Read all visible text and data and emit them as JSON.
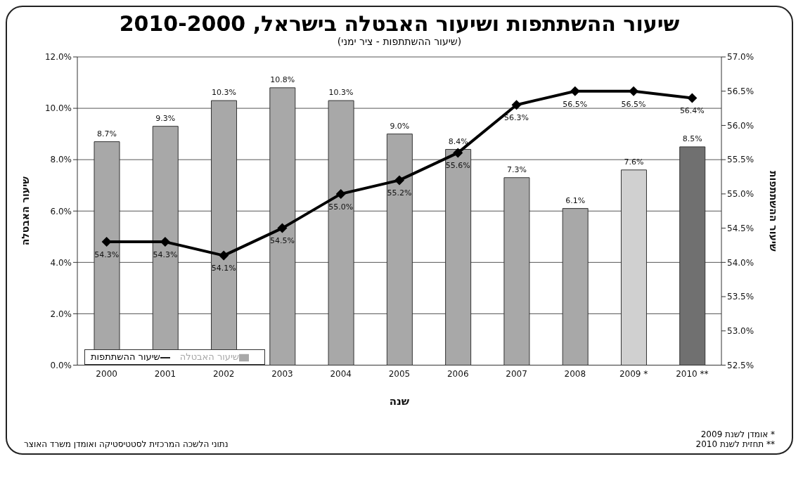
{
  "chart_data": {
    "type": "bar",
    "title": "שיעור ההשתתפות ושיעור האבטלה בישראל, 2010-2000",
    "subtitle": "(שיעור ההשתתפות - ציר ימני)",
    "xlabel": "שנה",
    "ylabel": "שיעור האבטלה",
    "y2label": "שיעור ההשתתפות",
    "categories": [
      "2000",
      "2001",
      "2002",
      "2003",
      "2004",
      "2005",
      "2006",
      "2007",
      "2008",
      "2009 *",
      "2010 **"
    ],
    "series": [
      {
        "name": "שיעור האבטלה",
        "color": "#a8a8a8",
        "colors": [
          "#a8a8a8",
          "#a8a8a8",
          "#a8a8a8",
          "#a8a8a8",
          "#a8a8a8",
          "#a8a8a8",
          "#a8a8a8",
          "#a8a8a8",
          "#a8a8a8",
          "#d0d0d0",
          "#707070"
        ],
        "values": [
          8.7,
          9.3,
          10.3,
          10.8,
          10.3,
          9.0,
          8.4,
          7.3,
          6.1,
          7.6,
          8.5
        ],
        "value_labels": [
          "8.7%",
          "9.3%",
          "10.3%",
          "10.8%",
          "10.3%",
          "9.0%",
          "8.4%",
          "7.3%",
          "6.1%",
          "7.6%",
          "8.5%"
        ]
      },
      {
        "name": "שיעור ההשתתפות",
        "type": "line",
        "axis": "y2",
        "color": "#000000",
        "marker": "diamond",
        "values": [
          54.3,
          54.3,
          54.1,
          54.5,
          55.0,
          55.2,
          55.6,
          56.3,
          56.5,
          56.5,
          56.4
        ],
        "value_labels": [
          "54.3%",
          "54.3%",
          "54.1%",
          "54.5%",
          "55.0%",
          "55.2%",
          "55.6%",
          "56.3%",
          "56.5%",
          "56.5%",
          "56.4%"
        ]
      }
    ],
    "ylim": [
      0,
      12
    ],
    "yticks": [
      {
        "value": 0,
        "label": "0.0%"
      },
      {
        "value": 2,
        "label": "2.0%"
      },
      {
        "value": 4,
        "label": "4.0%"
      },
      {
        "value": 6,
        "label": "6.0%"
      },
      {
        "value": 8,
        "label": "8.0%"
      },
      {
        "value": 10,
        "label": "10.0%"
      },
      {
        "value": 12,
        "label": "12.0%"
      }
    ],
    "y2lim": [
      52.5,
      57
    ],
    "y2ticks": [
      {
        "value": 52.5,
        "label": "52.5%"
      },
      {
        "value": 53,
        "label": "53.0%"
      },
      {
        "value": 53.5,
        "label": "53.5%"
      },
      {
        "value": 54,
        "label": "54.0%"
      },
      {
        "value": 54.5,
        "label": "54.5%"
      },
      {
        "value": 55,
        "label": "55.0%"
      },
      {
        "value": 55.5,
        "label": "55.5%"
      },
      {
        "value": 56,
        "label": "56.0%"
      },
      {
        "value": 56.5,
        "label": "56.5%"
      },
      {
        "value": 57,
        "label": "57.0%"
      }
    ],
    "grid": "y",
    "legend": "bottom left",
    "annotations": [
      "* אומדן לשנת 2009",
      "** תחזית לשנת 2010",
      "נתוני הלשכה המרכזית לסטטיסטיקה ואומדן משרד האוצר"
    ]
  }
}
